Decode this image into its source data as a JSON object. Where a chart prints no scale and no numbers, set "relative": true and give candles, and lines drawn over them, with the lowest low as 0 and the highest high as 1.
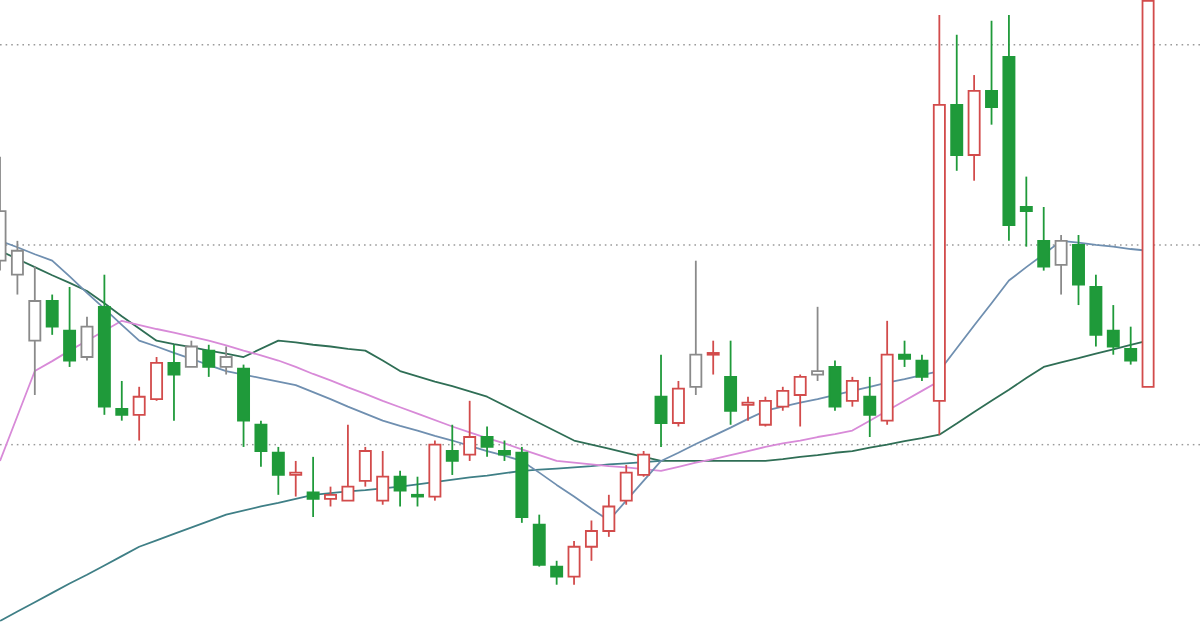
{
  "chart_data": {
    "type": "candlestick",
    "relative": true,
    "categories": [
      null,
      null,
      null,
      null,
      null,
      null,
      null,
      null,
      null,
      null,
      null,
      null,
      null,
      null,
      null,
      null,
      null,
      null,
      null,
      null,
      null,
      null,
      null,
      null,
      null,
      null,
      null,
      null,
      null,
      null,
      null,
      null,
      null,
      null,
      null,
      null,
      null,
      null,
      null,
      null,
      null,
      null,
      null,
      null,
      null,
      null,
      null,
      null,
      null,
      null,
      null,
      null,
      null,
      null,
      null,
      null,
      null,
      null,
      null,
      null,
      null,
      null,
      null,
      null,
      null,
      null,
      null
    ],
    "ohlc": [
      [
        0.555,
        0.733,
        0.538,
        0.64
      ],
      [
        0.531,
        0.589,
        0.497,
        0.572
      ],
      [
        0.418,
        0.545,
        0.325,
        0.486
      ],
      [
        0.486,
        0.497,
        0.428,
        0.442
      ],
      [
        0.435,
        0.51,
        0.373,
        0.384
      ],
      [
        0.39,
        0.459,
        0.384,
        0.442
      ],
      [
        0.476,
        0.531,
        0.291,
        0.305
      ],
      [
        0.301,
        0.349,
        0.281,
        0.291
      ],
      [
        0.291,
        0.339,
        0.247,
        0.322
      ],
      [
        0.318,
        0.39,
        0.315,
        0.38
      ],
      [
        0.38,
        0.411,
        0.281,
        0.36
      ],
      [
        0.373,
        0.418,
        0.373,
        0.408
      ],
      [
        0.401,
        0.411,
        0.356,
        0.373
      ],
      [
        0.373,
        0.408,
        0.36,
        0.39
      ],
      [
        0.37,
        0.377,
        0.236,
        0.281
      ],
      [
        0.274,
        0.281,
        0.202,
        0.229
      ],
      [
        0.226,
        0.236,
        0.154,
        0.188
      ],
      [
        0.188,
        0.212,
        0.151,
        0.192
      ],
      [
        0.158,
        0.219,
        0.116,
        0.147
      ],
      [
        0.147,
        0.168,
        0.134,
        0.154
      ],
      [
        0.144,
        0.274,
        0.144,
        0.168
      ],
      [
        0.178,
        0.236,
        0.168,
        0.229
      ],
      [
        0.144,
        0.229,
        0.137,
        0.185
      ],
      [
        0.185,
        0.195,
        0.134,
        0.161
      ],
      [
        0.154,
        0.185,
        0.134,
        0.151
      ],
      [
        0.151,
        0.247,
        0.144,
        0.24
      ],
      [
        0.229,
        0.274,
        0.188,
        0.212
      ],
      [
        0.223,
        0.315,
        0.212,
        0.253
      ],
      [
        0.253,
        0.271,
        0.219,
        0.236
      ],
      [
        0.229,
        0.247,
        0.212,
        0.223
      ],
      [
        0.226,
        0.236,
        0.106,
        0.116
      ],
      [
        0.103,
        0.12,
        0.031,
        0.034
      ],
      [
        0.031,
        0.041,
        0,
        0.014
      ],
      [
        0.014,
        0.075,
        0,
        0.065
      ],
      [
        0.065,
        0.11,
        0.041,
        0.092
      ],
      [
        0.092,
        0.154,
        0.082,
        0.134
      ],
      [
        0.144,
        0.205,
        0.137,
        0.192
      ],
      [
        0.188,
        0.229,
        0.185,
        0.223
      ],
      [
        0.322,
        0.394,
        0.236,
        0.277
      ],
      [
        0.277,
        0.349,
        0.271,
        0.336
      ],
      [
        0.339,
        0.555,
        0.325,
        0.394
      ],
      [
        0.394,
        0.418,
        0.36,
        0.397
      ],
      [
        0.356,
        0.418,
        0.274,
        0.298
      ],
      [
        0.308,
        0.322,
        0.281,
        0.312
      ],
      [
        0.274,
        0.322,
        0.271,
        0.315
      ],
      [
        0.305,
        0.339,
        0.298,
        0.332
      ],
      [
        0.325,
        0.36,
        0.271,
        0.356
      ],
      [
        0.36,
        0.476,
        0.349,
        0.366
      ],
      [
        0.373,
        0.384,
        0.298,
        0.305
      ],
      [
        0.315,
        0.356,
        0.305,
        0.349
      ],
      [
        0.322,
        0.356,
        0.253,
        0.291
      ],
      [
        0.281,
        0.452,
        0.274,
        0.394
      ],
      [
        0.394,
        0.418,
        0.373,
        0.387
      ],
      [
        0.384,
        0.394,
        0.349,
        0.356
      ],
      [
        0.315,
        0.976,
        0.257,
        0.822
      ],
      [
        0.822,
        0.942,
        0.709,
        0.736
      ],
      [
        0.736,
        0.873,
        0.692,
        0.846
      ],
      [
        0.846,
        0.966,
        0.788,
        0.818
      ],
      [
        0.904,
        0.976,
        0.589,
        0.616
      ],
      [
        0.647,
        0.699,
        0.579,
        0.64
      ],
      [
        0.589,
        0.647,
        0.538,
        0.545
      ],
      [
        0.548,
        0.599,
        0.497,
        0.589
      ],
      [
        0.582,
        0.599,
        0.479,
        0.514
      ],
      [
        0.51,
        0.531,
        0.408,
        0.428
      ],
      [
        0.435,
        0.479,
        0.394,
        0.408
      ],
      [
        0.404,
        0.442,
        0.377,
        0.384
      ],
      [
        0.339,
        1.0,
        0.339,
        1.0
      ]
    ],
    "colors": [
      "#8a8a8a",
      "#8a8a8a",
      "#8a8a8a",
      "#1f9a3a",
      "#1f9a3a",
      "#8a8a8a",
      "#1f9a3a",
      "#1f9a3a",
      "#d24b4b",
      "#d24b4b",
      "#1f9a3a",
      "#8a8a8a",
      "#1f9a3a",
      "#8a8a8a",
      "#1f9a3a",
      "#1f9a3a",
      "#1f9a3a",
      "#d24b4b",
      "#1f9a3a",
      "#d24b4b",
      "#d24b4b",
      "#d24b4b",
      "#d24b4b",
      "#1f9a3a",
      "#1f9a3a",
      "#d24b4b",
      "#1f9a3a",
      "#d24b4b",
      "#1f9a3a",
      "#1f9a3a",
      "#1f9a3a",
      "#1f9a3a",
      "#1f9a3a",
      "#d24b4b",
      "#d24b4b",
      "#d24b4b",
      "#d24b4b",
      "#d24b4b",
      "#1f9a3a",
      "#d24b4b",
      "#8a8a8a",
      "#d24b4b",
      "#1f9a3a",
      "#d24b4b",
      "#d24b4b",
      "#d24b4b",
      "#d24b4b",
      "#8a8a8a",
      "#1f9a3a",
      "#d24b4b",
      "#1f9a3a",
      "#d24b4b",
      "#1f9a3a",
      "#1f9a3a",
      "#d24b4b",
      "#1f9a3a",
      "#d24b4b",
      "#1f9a3a",
      "#1f9a3a",
      "#1f9a3a",
      "#1f9a3a",
      "#8a8a8a",
      "#1f9a3a",
      "#1f9a3a",
      "#1f9a3a",
      "#1f9a3a",
      "#d24b4b"
    ],
    "series": [
      {
        "type": "line",
        "color": "#2f6e55",
        "values": [
          0.572,
          0.558,
          0.544,
          0.53,
          0.517,
          0.503,
          0.482,
          0.46,
          0.439,
          0.418,
          0.412,
          0.407,
          0.401,
          0.396,
          0.39,
          0.404,
          0.418,
          0.415,
          0.411,
          0.408,
          0.404,
          0.401,
          0.384,
          0.366,
          0.357,
          0.348,
          0.34,
          0.331,
          0.322,
          0.307,
          0.292,
          0.277,
          0.262,
          0.247,
          0.24,
          0.233,
          0.226,
          0.219,
          0.212,
          0.212,
          0.212,
          0.212,
          0.212,
          0.212,
          0.212,
          0.215,
          0.219,
          0.222,
          0.226,
          0.229,
          0.235,
          0.24,
          0.246,
          0.251,
          0.257,
          0.276,
          0.296,
          0.315,
          0.334,
          0.354,
          0.373,
          0.381,
          0.388,
          0.396,
          0.403,
          0.411,
          0.418
        ]
      },
      {
        "type": "line",
        "color": "#3f7f86",
        "values": [
          -0.062,
          -0.046,
          -0.03,
          -0.014,
          0.002,
          0.017,
          0.033,
          0.049,
          0.065,
          0.076,
          0.087,
          0.098,
          0.109,
          0.12,
          0.127,
          0.134,
          0.14,
          0.147,
          0.154,
          0.157,
          0.16,
          0.162,
          0.165,
          0.168,
          0.172,
          0.176,
          0.18,
          0.184,
          0.187,
          0.191,
          0.195,
          0.197,
          0.199,
          0.201,
          0.203,
          0.206,
          0.208,
          0.21,
          0.212,
          null,
          null,
          null,
          null,
          null,
          null,
          null,
          null,
          null,
          null,
          null,
          null,
          null,
          null,
          null,
          null,
          null,
          null,
          null,
          null,
          null,
          null,
          null,
          null,
          null,
          null,
          null,
          null
        ]
      },
      {
        "type": "line",
        "color": "#d88ad8",
        "values": [
          0.212,
          0.289,
          0.366,
          0.383,
          0.401,
          0.418,
          0.435,
          0.452,
          0.445,
          0.438,
          0.432,
          0.425,
          0.418,
          0.41,
          0.401,
          0.393,
          0.384,
          0.373,
          0.361,
          0.35,
          0.338,
          0.327,
          0.315,
          0.304,
          0.293,
          0.282,
          0.271,
          0.261,
          0.251,
          0.242,
          0.232,
          0.222,
          0.212,
          0.209,
          0.206,
          0.203,
          0.201,
          0.198,
          0.195,
          0.202,
          0.209,
          0.215,
          0.222,
          0.229,
          0.236,
          0.242,
          0.247,
          0.253,
          0.258,
          0.264,
          0.281,
          0.298,
          0.315,
          0.332,
          0.349,
          null,
          null,
          null,
          null,
          null,
          null,
          null,
          null,
          null,
          null,
          null,
          null
        ]
      },
      {
        "type": "line",
        "color": "#6f8fb0",
        "values": [
          0.589,
          0.578,
          0.566,
          0.555,
          0.528,
          0.5,
          0.473,
          0.445,
          0.418,
          0.408,
          0.397,
          0.387,
          0.376,
          0.366,
          0.36,
          0.354,
          0.348,
          0.342,
          0.33,
          0.318,
          0.305,
          0.293,
          0.281,
          0.272,
          0.264,
          0.255,
          0.247,
          0.238,
          0.229,
          0.221,
          0.212,
          0.192,
          0.171,
          0.151,
          0.13,
          0.11,
          0.144,
          0.178,
          0.212,
          0.226,
          0.241,
          0.255,
          0.269,
          0.284,
          0.298,
          0.305,
          0.312,
          0.318,
          0.325,
          0.332,
          0.339,
          0.346,
          0.352,
          0.359,
          0.366,
          0.405,
          0.444,
          0.482,
          0.521,
          0.544,
          0.566,
          0.589,
          0.586,
          0.582,
          0.579,
          0.575,
          0.572
        ]
      }
    ],
    "ref_lines": [
      {
        "axis": "y",
        "value": 0.925,
        "color": "#9a9a9a",
        "line_style": "dotted"
      },
      {
        "axis": "y",
        "value": 0.582,
        "color": "#9a9a9a",
        "line_style": "dotted"
      },
      {
        "axis": "y",
        "value": 0.24,
        "color": "#9a9a9a",
        "line_style": "dotted"
      }
    ]
  }
}
